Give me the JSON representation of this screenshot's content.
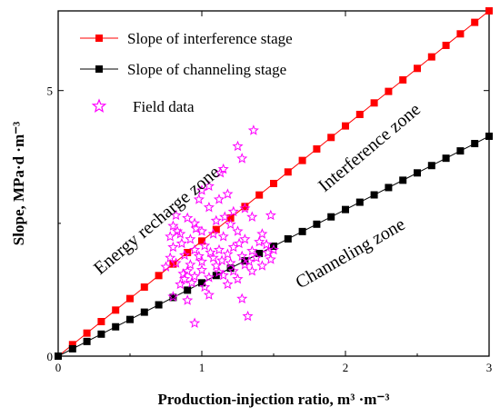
{
  "chart_data": {
    "type": "scatter",
    "xlabel": "Production-injection ratio, m³ ·m⁻³",
    "ylabel": "Slope, MPa·d ·m⁻³",
    "xlim": [
      0,
      3
    ],
    "ylim": [
      0,
      6.5
    ],
    "x_ticks": [
      "0",
      "1",
      "2",
      "3"
    ],
    "y_ticks": [
      "0",
      "5"
    ],
    "legend_position": "top-left",
    "series": [
      {
        "name": "Slope of interference stage",
        "kind": "line-square",
        "color": "#ff0000",
        "slope": 2.167,
        "x": [
          0,
          0.1,
          0.2,
          0.3,
          0.4,
          0.5,
          0.6,
          0.7,
          0.8,
          0.9,
          1.0,
          1.1,
          1.2,
          1.3,
          1.4,
          1.5,
          1.6,
          1.7,
          1.8,
          1.9,
          2.0,
          2.1,
          2.2,
          2.3,
          2.4,
          2.5,
          2.6,
          2.7,
          2.8,
          2.9,
          3.0
        ]
      },
      {
        "name": "Slope of channeling stage",
        "kind": "line-square",
        "color": "#000000",
        "slope": 1.38,
        "x": [
          0,
          0.1,
          0.2,
          0.3,
          0.4,
          0.5,
          0.6,
          0.7,
          0.8,
          0.9,
          1.0,
          1.1,
          1.2,
          1.3,
          1.4,
          1.5,
          1.6,
          1.7,
          1.8,
          1.9,
          2.0,
          2.1,
          2.2,
          2.3,
          2.4,
          2.5,
          2.6,
          2.7,
          2.8,
          2.9,
          3.0
        ]
      },
      {
        "name": "Field data",
        "kind": "star",
        "color": "#ff00ff",
        "points": [
          [
            1.36,
            4.25
          ],
          [
            1.25,
            3.95
          ],
          [
            1.28,
            3.72
          ],
          [
            1.15,
            3.52
          ],
          [
            1.13,
            3.45
          ],
          [
            1.05,
            3.2
          ],
          [
            1.0,
            3.12
          ],
          [
            1.18,
            3.05
          ],
          [
            1.12,
            2.95
          ],
          [
            0.98,
            2.95
          ],
          [
            1.48,
            2.65
          ],
          [
            1.22,
            2.72
          ],
          [
            1.3,
            2.78
          ],
          [
            1.35,
            2.62
          ],
          [
            1.05,
            2.8
          ],
          [
            0.82,
            2.65
          ],
          [
            0.8,
            2.45
          ],
          [
            0.9,
            2.6
          ],
          [
            0.95,
            2.5
          ],
          [
            1.1,
            2.55
          ],
          [
            1.2,
            2.48
          ],
          [
            1.25,
            2.35
          ],
          [
            0.78,
            2.25
          ],
          [
            0.85,
            2.3
          ],
          [
            0.92,
            2.2
          ],
          [
            1.0,
            2.35
          ],
          [
            1.08,
            2.3
          ],
          [
            1.15,
            2.25
          ],
          [
            1.3,
            2.2
          ],
          [
            1.4,
            2.15
          ],
          [
            1.45,
            2.1
          ],
          [
            0.8,
            2.05
          ],
          [
            0.86,
            2.12
          ],
          [
            0.95,
            2.0
          ],
          [
            1.02,
            2.08
          ],
          [
            1.12,
            2.0
          ],
          [
            1.22,
            2.05
          ],
          [
            1.35,
            1.98
          ],
          [
            1.5,
            2.0
          ],
          [
            0.78,
            1.85
          ],
          [
            0.88,
            1.9
          ],
          [
            0.98,
            1.88
          ],
          [
            1.08,
            1.85
          ],
          [
            1.18,
            1.92
          ],
          [
            1.28,
            1.88
          ],
          [
            1.38,
            1.85
          ],
          [
            1.48,
            1.82
          ],
          [
            0.82,
            1.75
          ],
          [
            0.92,
            1.72
          ],
          [
            1.0,
            1.78
          ],
          [
            1.1,
            1.7
          ],
          [
            1.2,
            1.75
          ],
          [
            1.3,
            1.72
          ],
          [
            1.42,
            1.7
          ],
          [
            0.75,
            1.68
          ],
          [
            0.9,
            1.6
          ],
          [
            1.0,
            1.62
          ],
          [
            1.12,
            1.58
          ],
          [
            1.22,
            1.6
          ],
          [
            1.35,
            1.6
          ],
          [
            0.88,
            1.45
          ],
          [
            0.95,
            1.5
          ],
          [
            1.05,
            1.48
          ],
          [
            1.15,
            1.52
          ],
          [
            1.25,
            1.45
          ],
          [
            0.85,
            1.35
          ],
          [
            0.93,
            1.38
          ],
          [
            1.02,
            1.3
          ],
          [
            1.18,
            1.35
          ],
          [
            0.8,
            1.12
          ],
          [
            0.9,
            1.05
          ],
          [
            1.05,
            1.15
          ],
          [
            1.28,
            1.08
          ],
          [
            0.95,
            0.62
          ],
          [
            1.32,
            0.75
          ],
          [
            0.83,
            2.35
          ],
          [
            1.16,
            2.62
          ],
          [
            1.42,
            2.3
          ],
          [
            0.96,
            2.4
          ],
          [
            1.06,
            1.95
          ],
          [
            1.26,
            2.12
          ],
          [
            1.46,
            1.95
          ],
          [
            0.87,
            1.55
          ],
          [
            1.14,
            1.8
          ],
          [
            1.33,
            1.78
          ]
        ]
      }
    ],
    "annotations": [
      "Energy recharge zone",
      "Interference zone",
      "Channeling zone"
    ]
  }
}
